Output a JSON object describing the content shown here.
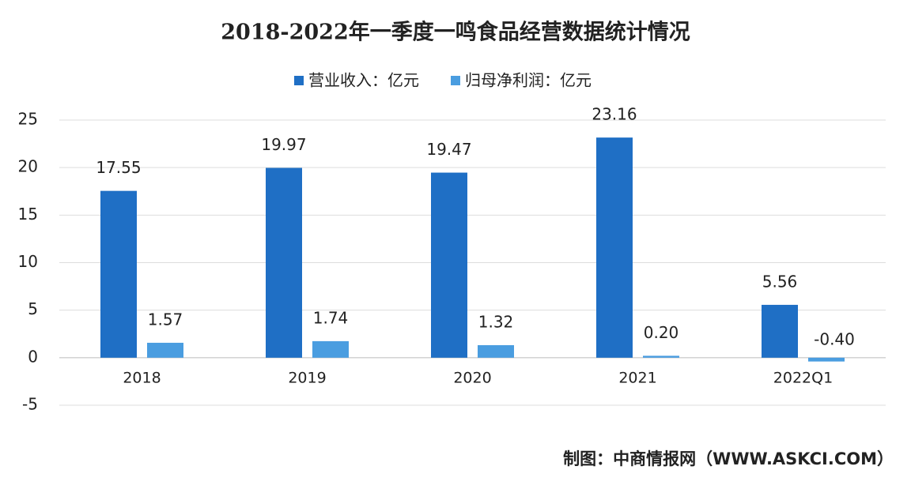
{
  "chart_data": {
    "type": "bar",
    "title": "2018-2022年一季度一鸣食品经营数据统计情况",
    "categories": [
      "2018",
      "2019",
      "2020",
      "2021",
      "2022Q1"
    ],
    "series": [
      {
        "name": "营业收入：亿元",
        "color": "#1f6fc5",
        "values": [
          17.55,
          19.97,
          19.47,
          23.16,
          5.56
        ],
        "value_labels": [
          "17.55",
          "19.97",
          "19.47",
          "23.16",
          "5.56"
        ]
      },
      {
        "name": "归母净利润：亿元",
        "color": "#4a9de0",
        "values": [
          1.57,
          1.74,
          1.32,
          0.2,
          -0.4
        ],
        "value_labels": [
          "1.57",
          "1.74",
          "1.32",
          "0.20",
          "-0.40"
        ]
      }
    ],
    "ylim": [
      -5,
      25
    ],
    "yticks": [
      -5,
      0,
      5,
      10,
      15,
      20,
      25
    ],
    "grid": true,
    "legend": "top",
    "source": "制图：中商情报网（WWW.ASKCI.COM）"
  }
}
